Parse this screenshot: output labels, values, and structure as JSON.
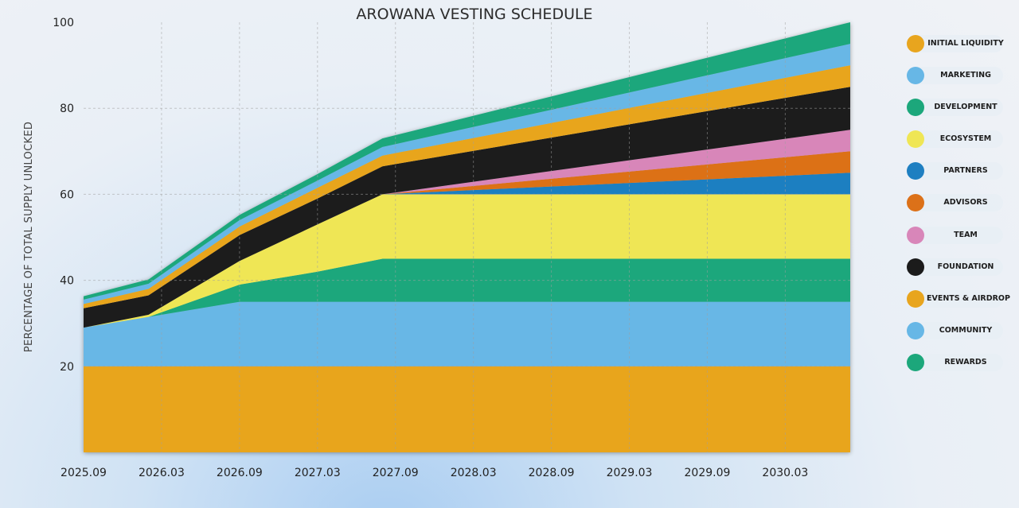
{
  "chart_data": {
    "type": "area",
    "stacked": true,
    "title": "AROWANA VESTING SCHEDULE",
    "xlabel": "",
    "ylabel": "PERCENTAGE OF TOTAL SUPPLY UNLOCKED",
    "ylim": [
      0,
      100
    ],
    "yticks": [
      20,
      40,
      60,
      80,
      100
    ],
    "xticks": [
      "2025.09",
      "2026.03",
      "2026.09",
      "2027.03",
      "2027.09",
      "2028.03",
      "2028.09",
      "2029.03",
      "2029.09",
      "2030.03"
    ],
    "x_months": [
      0,
      5,
      12,
      18,
      23,
      59
    ],
    "x_range_months": [
      0,
      59
    ],
    "grid": true,
    "legend_position": "right",
    "series": [
      {
        "name": "INITIAL LIQUIDITY",
        "color": "#E8A51E",
        "values": [
          20,
          20,
          20,
          20,
          20,
          20
        ]
      },
      {
        "name": "COMMUNITY",
        "color": "#67B7E6",
        "values": [
          9,
          11.5,
          15,
          15,
          15,
          15
        ]
      },
      {
        "name": "REWARDS",
        "color": "#1CA77B",
        "values": [
          0,
          0,
          4,
          7,
          10,
          10
        ]
      },
      {
        "name": "ECOSYSTEM",
        "color": "#EFE655",
        "values": [
          0,
          0.5,
          5.5,
          11,
          15,
          15
        ]
      },
      {
        "name": "PARTNERS",
        "color": "#1E7FC1",
        "values": [
          0,
          0,
          0,
          0,
          0,
          5
        ]
      },
      {
        "name": "ADVISORS",
        "color": "#DC7119",
        "values": [
          0,
          0,
          0,
          0,
          0,
          5
        ]
      },
      {
        "name": "TEAM",
        "color": "#D886B9",
        "values": [
          0,
          0,
          0,
          0,
          0,
          5
        ]
      },
      {
        "name": "FOUNDATION",
        "color": "#1B1B1B",
        "values": [
          4.5,
          4.5,
          6,
          6,
          6.5,
          10
        ]
      },
      {
        "name": "EVENTS & AIRDROP",
        "color": "#E8A51E",
        "values": [
          1,
          1.5,
          2,
          2.5,
          2.5,
          5
        ]
      },
      {
        "name": "MARKETING",
        "color": "#67B7E6",
        "values": [
          1,
          1.2,
          1.5,
          1.7,
          2,
          5
        ]
      },
      {
        "name": "DEVELOPMENT",
        "color": "#1CA77B",
        "values": [
          0.8,
          1,
          1.2,
          1.5,
          2,
          5
        ]
      }
    ],
    "legend": [
      {
        "label": "INITIAL LIQUIDITY",
        "color": "#E8A51E"
      },
      {
        "label": "MARKETING",
        "color": "#67B7E6"
      },
      {
        "label": "DEVELOPMENT",
        "color": "#1CA77B"
      },
      {
        "label": "ECOSYSTEM",
        "color": "#EFE655"
      },
      {
        "label": "PARTNERS",
        "color": "#1E7FC1"
      },
      {
        "label": "ADVISORS",
        "color": "#DC7119"
      },
      {
        "label": "TEAM",
        "color": "#D886B9"
      },
      {
        "label": "FOUNDATION",
        "color": "#1B1B1B"
      },
      {
        "label": "EVENTS & AIRDROP",
        "color": "#E8A51E"
      },
      {
        "label": "COMMUNITY",
        "color": "#67B7E6"
      },
      {
        "label": "REWARDS",
        "color": "#1CA77B"
      }
    ]
  }
}
